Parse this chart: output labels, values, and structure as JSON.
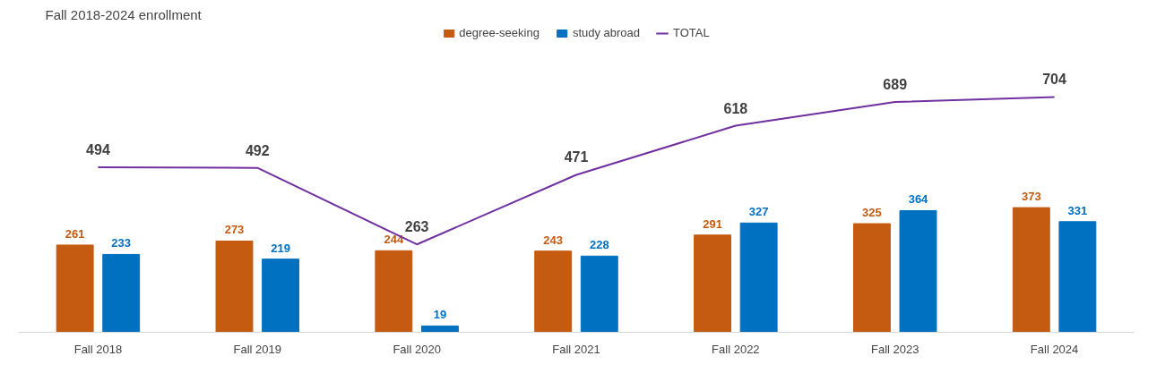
{
  "chart_data": {
    "type": "bar",
    "title": "Fall 2018-2024 enrollment",
    "categories": [
      "Fall 2018",
      "Fall 2019",
      "Fall 2020",
      "Fall 2021",
      "Fall 2022",
      "Fall 2023",
      "Fall 2024"
    ],
    "series": [
      {
        "name": "degree-seeking",
        "color": "#c55a11",
        "values": [
          261,
          273,
          244,
          243,
          291,
          325,
          373
        ]
      },
      {
        "name": "study abroad",
        "color": "#0070c0",
        "values": [
          233,
          219,
          19,
          228,
          327,
          364,
          331
        ]
      },
      {
        "name": "TOTAL",
        "type": "line",
        "color": "#7030a0",
        "values": [
          494,
          492,
          263,
          471,
          618,
          689,
          704
        ]
      }
    ],
    "data_labels": true,
    "legend": "top",
    "grid": false
  }
}
